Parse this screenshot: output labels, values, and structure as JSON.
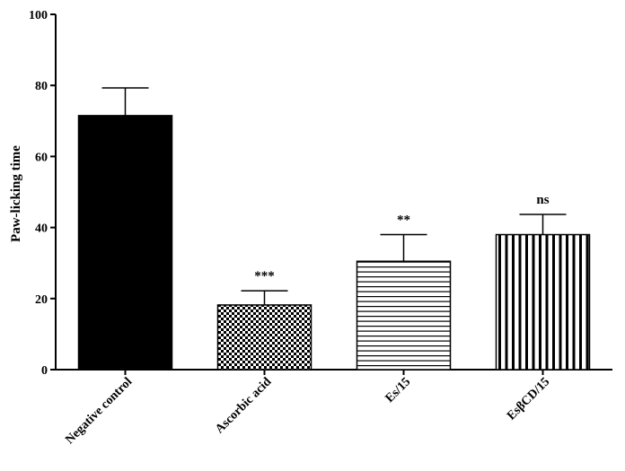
{
  "chart_data": {
    "type": "bar",
    "title": "",
    "xlabel": "",
    "ylabel": "Paw-licking time",
    "ylim": [
      0,
      100
    ],
    "yticks": [
      "0",
      "20",
      "40",
      "60",
      "80",
      "100"
    ],
    "categories": [
      "Negative control",
      "Ascorbic acid",
      "Es/15",
      "EsβCD/15"
    ],
    "values": [
      71.5,
      18.2,
      30.5,
      38.0
    ],
    "errors": [
      7.8,
      4.0,
      7.5,
      5.7
    ],
    "significance": [
      "",
      "***",
      "**",
      "ns"
    ],
    "patterns": [
      "solid-black",
      "checkerboard",
      "horizontal-lines",
      "vertical-lines"
    ],
    "grid": false,
    "legend": "none"
  }
}
